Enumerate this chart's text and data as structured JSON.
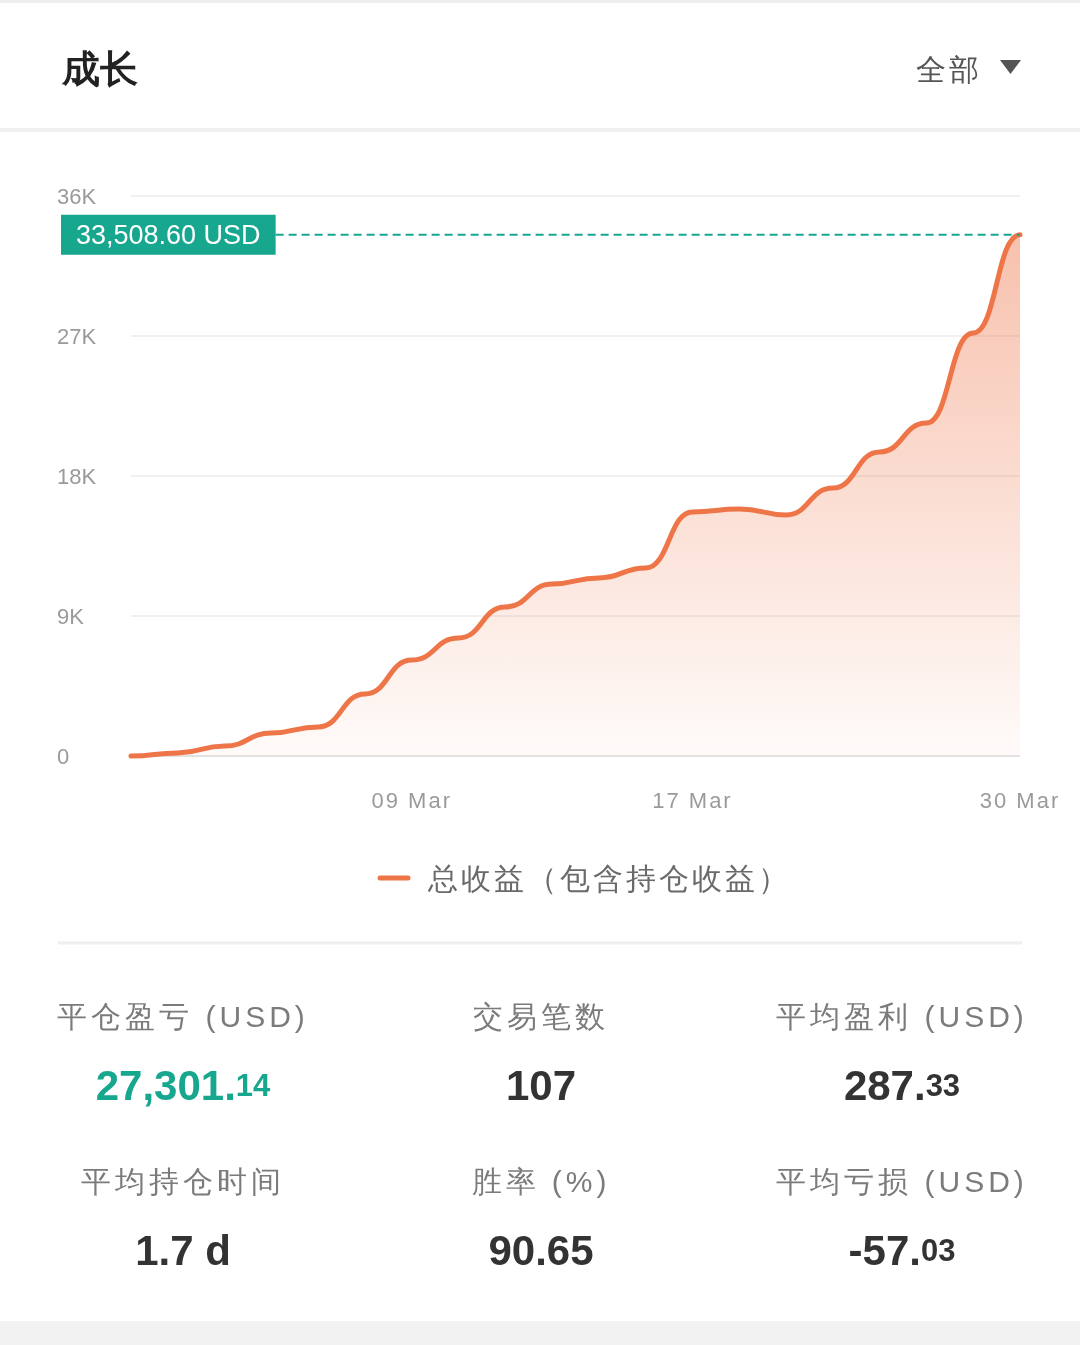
{
  "chart_data": [
    {
      "type": "area",
      "title": "成长",
      "annotations": [
        "全部"
      ],
      "categories": [
        null,
        null,
        null,
        null,
        null,
        null,
        "09 Mar",
        null,
        null,
        null,
        null,
        null,
        "17 Mar",
        null,
        null,
        null,
        null,
        null,
        null,
        "30 Mar"
      ],
      "series": [
        {
          "name": "总收益（包含持仓收益）",
          "color": "#ee7548",
          "values": [
            0,
            200,
            640,
            1480,
            1870,
            3990,
            6170,
            7590,
            9580,
            11060,
            11450,
            12090,
            15690,
            15880,
            15500,
            17230,
            19550,
            21410,
            27200,
            33508.6
          ]
        }
      ],
      "ylim": [
        0,
        36000
      ],
      "yticks": [
        0,
        {
          "value": 9000,
          "label": "9K"
        },
        {
          "value": 18000,
          "label": "18K"
        },
        {
          "value": 27000,
          "label": "27K"
        },
        {
          "value": 36000,
          "label": "36K"
        }
      ],
      "grid": "y",
      "legend": "bottom",
      "ref_lines": [
        {
          "axis": "y",
          "value": 33508.6,
          "label": "33,508.60 USD",
          "color": "#17a68e",
          "line_style": "dashed"
        }
      ]
    },
    {
      "type": "other",
      "annotations": [
        "平仓盈亏 (USD)",
        "27,301.14",
        "交易笔数",
        "107",
        "平均盈利 (USD)",
        "287.33",
        "平均持仓时间",
        "1.7 d",
        "胜率 (%)",
        "90.65",
        "平均亏损 (USD)",
        "-57.03"
      ]
    }
  ]
}
